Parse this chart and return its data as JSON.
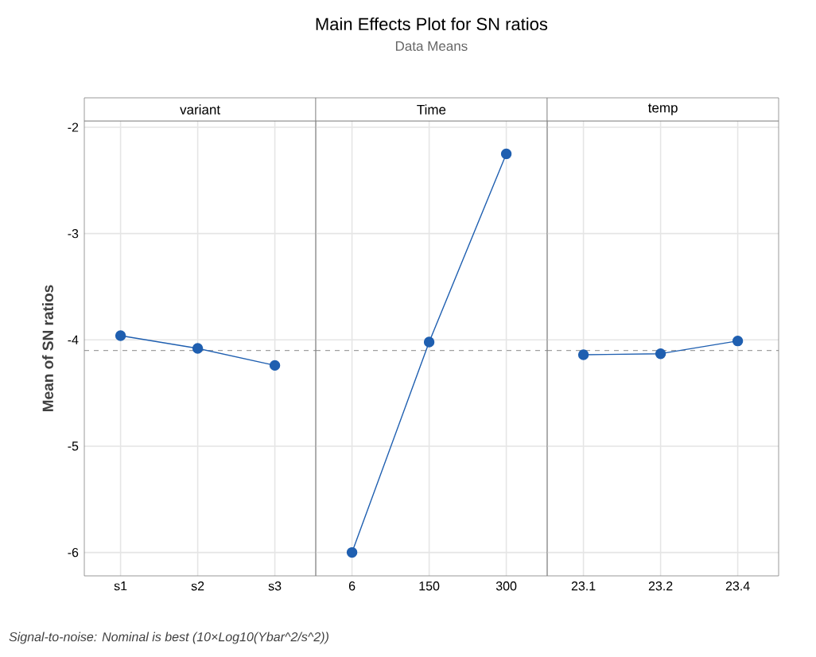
{
  "chart_data": [
    {
      "type": "line",
      "xlabel": "variant",
      "ylabel": "Mean of SN ratios",
      "annotations": [
        "Signal-to-noise: Nominal is best (10×Log10(Ybar^2/s^2))"
      ],
      "categories": [
        "s1",
        "s2",
        "s3"
      ],
      "series": [
        {
          "color": "#1f5fb0",
          "values": [
            -3.96,
            -4.08,
            -4.24
          ]
        }
      ],
      "ylim": [
        -6.22,
        -1.94
      ],
      "yticks": [
        -6,
        -5,
        -4,
        -3,
        -2
      ],
      "grid": true,
      "marker": "circle",
      "ref_lines": [
        {
          "axis": "y",
          "value": -4.1,
          "color": "#808080",
          "line_style": "dashed"
        }
      ]
    },
    {
      "type": "line",
      "title": "Main Effects Plot for SN ratios",
      "subtitle": "Data Means",
      "xlabel": "Time",
      "categories": [
        "6",
        "150",
        "300"
      ],
      "series": [
        {
          "color": "#1f5fb0",
          "values": [
            -6.0,
            -4.02,
            -2.25
          ]
        }
      ],
      "ylim": [
        -6.22,
        -1.94
      ],
      "yticks": [
        -6,
        -5,
        -4,
        -3,
        -2
      ],
      "tick_labels": "x",
      "grid": true,
      "marker": "circle",
      "ref_lines": [
        {
          "axis": "y",
          "value": -4.1,
          "color": "#808080",
          "line_style": "dashed"
        }
      ]
    },
    {
      "type": "line",
      "xlabel": "temp",
      "categories": [
        "23.1",
        "23.2",
        "23.4"
      ],
      "series": [
        {
          "color": "#1f5fb0",
          "values": [
            -4.14,
            -4.13,
            -4.01
          ]
        }
      ],
      "ylim": [
        -6.22,
        -1.94
      ],
      "yticks": [
        -6,
        -5,
        -4,
        -3,
        -2
      ],
      "tick_labels": "x",
      "grid": true,
      "marker": "circle",
      "ref_lines": [
        {
          "axis": "y",
          "value": -4.1,
          "color": "#808080",
          "line_style": "dashed"
        }
      ]
    }
  ]
}
